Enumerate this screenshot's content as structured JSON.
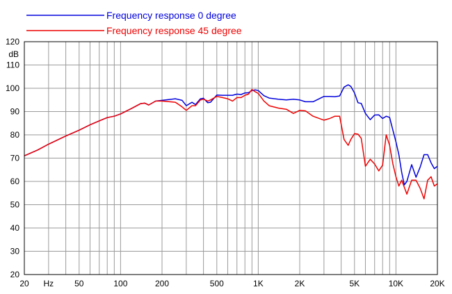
{
  "chart_data": {
    "type": "line",
    "title": "",
    "xlabel": "",
    "ylabel": "dB",
    "x_scale": "log",
    "xlim": [
      20,
      20000
    ],
    "ylim": [
      20,
      120
    ],
    "grid": true,
    "legend_position": "top-left",
    "x_ticks": [
      {
        "value": 20,
        "label": "20"
      },
      {
        "value": 30,
        "label": "Hz"
      },
      {
        "value": 50,
        "label": "50"
      },
      {
        "value": 100,
        "label": "100"
      },
      {
        "value": 200,
        "label": "200"
      },
      {
        "value": 500,
        "label": "500"
      },
      {
        "value": 1000,
        "label": "1K"
      },
      {
        "value": 2000,
        "label": "2K"
      },
      {
        "value": 5000,
        "label": "5K"
      },
      {
        "value": 10000,
        "label": "10K"
      },
      {
        "value": 20000,
        "label": "20K"
      }
    ],
    "y_ticks": [
      20,
      30,
      40,
      50,
      60,
      70,
      80,
      90,
      100,
      110,
      120
    ],
    "series": [
      {
        "name": "Frequency response 0 degree",
        "color": "#0000dd",
        "x": [
          20,
          25,
          30,
          40,
          50,
          60,
          70,
          80,
          90,
          100,
          120,
          140,
          150,
          160,
          180,
          200,
          250,
          280,
          300,
          330,
          350,
          380,
          400,
          430,
          450,
          500,
          550,
          600,
          650,
          700,
          750,
          800,
          850,
          900,
          950,
          1000,
          1100,
          1200,
          1400,
          1600,
          1800,
          2000,
          2200,
          2500,
          3000,
          3300,
          3600,
          3900,
          4200,
          4500,
          4700,
          5000,
          5300,
          5600,
          6000,
          6500,
          7000,
          7500,
          8000,
          8500,
          9000,
          9500,
          10000,
          10500,
          11000,
          11500,
          12000,
          13000,
          14000,
          15000,
          16000,
          17000,
          18000,
          19000,
          20000
        ],
        "y": [
          71,
          73.5,
          76,
          79.5,
          82,
          84.3,
          86,
          87.4,
          88,
          89,
          91.3,
          93.4,
          93.6,
          92.8,
          94.5,
          94.8,
          95.5,
          94.8,
          92.5,
          94,
          93,
          95.5,
          95.7,
          93.8,
          94,
          97.1,
          97,
          97,
          97,
          97.5,
          97.3,
          98,
          98.1,
          99,
          99.3,
          99,
          96.8,
          95.8,
          95.3,
          95,
          95.3,
          95,
          94.2,
          94.2,
          96.5,
          96.5,
          96.4,
          96.7,
          100.5,
          101.5,
          100.8,
          98,
          93.8,
          93.5,
          89.2,
          86.5,
          88.5,
          88.6,
          87,
          88,
          87.5,
          82,
          77,
          71.5,
          64,
          58.5,
          60,
          67.2,
          61.8,
          66.2,
          71.5,
          71.5,
          68,
          65.5,
          66.5
        ]
      },
      {
        "name": "Frequency response 45 degree",
        "color": "#ee0000",
        "x": [
          20,
          25,
          30,
          40,
          50,
          60,
          70,
          80,
          90,
          100,
          120,
          140,
          150,
          160,
          180,
          200,
          250,
          280,
          300,
          330,
          350,
          380,
          400,
          430,
          450,
          500,
          550,
          600,
          650,
          700,
          750,
          800,
          850,
          900,
          950,
          1000,
          1100,
          1200,
          1400,
          1600,
          1800,
          2000,
          2200,
          2500,
          3000,
          3300,
          3600,
          3900,
          4200,
          4500,
          4700,
          5000,
          5300,
          5600,
          6000,
          6500,
          7000,
          7500,
          8000,
          8500,
          9000,
          9500,
          10000,
          10500,
          11000,
          11500,
          12000,
          13000,
          14000,
          15000,
          16000,
          17000,
          18000,
          19000,
          20000
        ],
        "y": [
          71,
          73.5,
          76,
          79.5,
          82,
          84.3,
          86,
          87.4,
          88,
          89,
          91.3,
          93.4,
          93.6,
          92.8,
          94.5,
          94.5,
          94,
          92,
          90.5,
          92.5,
          92.5,
          95,
          95.3,
          94.5,
          95,
          96.5,
          96,
          95.5,
          94.5,
          96,
          96,
          97,
          97.5,
          99.5,
          98.5,
          97.8,
          94.5,
          92.5,
          91.5,
          91,
          89.2,
          90.5,
          90.3,
          88,
          86.3,
          87,
          88,
          88,
          78,
          75.5,
          78,
          80.5,
          80.3,
          78.5,
          66.5,
          69.5,
          67.5,
          64.5,
          67,
          80,
          75.5,
          67.5,
          62,
          58,
          60.5,
          57.5,
          54.5,
          60.5,
          60.5,
          57,
          52.5,
          60.5,
          62,
          58,
          59
        ]
      }
    ]
  }
}
